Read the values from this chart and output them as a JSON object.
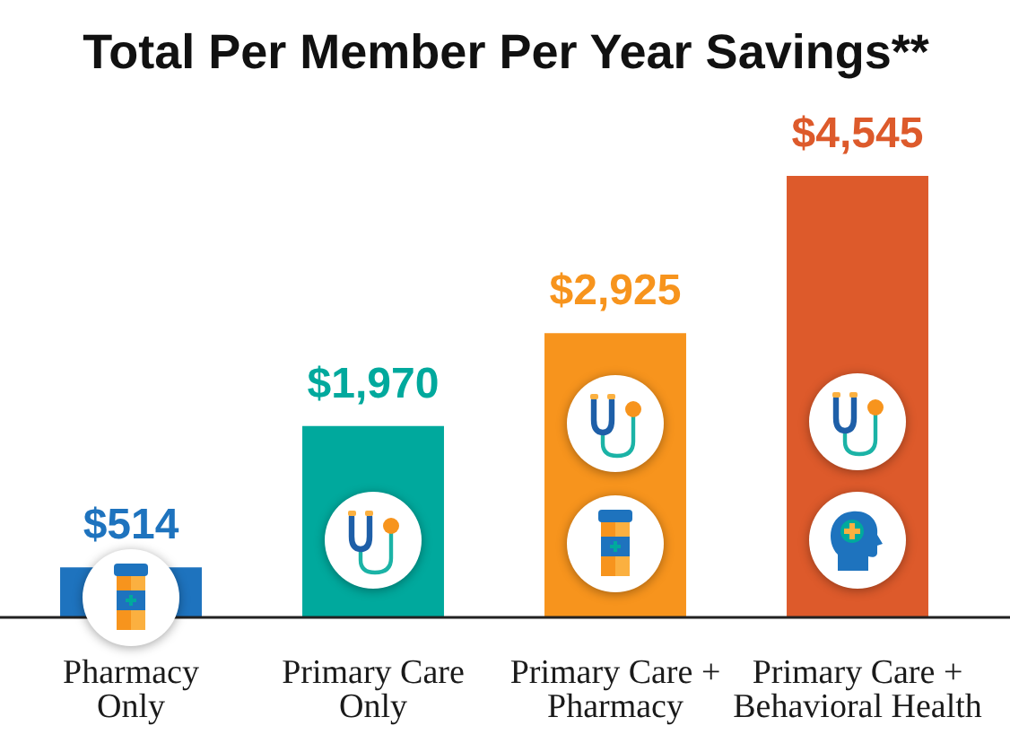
{
  "chart_data": {
    "type": "bar",
    "title": "Total Per Member Per Year Savings**",
    "categories": [
      "Pharmacy\nOnly",
      "Primary Care\nOnly",
      "Primary Care +\nPharmacy",
      "Primary Care +\nBehavioral Health"
    ],
    "values": [
      514,
      1970,
      2925,
      4545
    ],
    "colors": [
      "#1e73be",
      "#00a99d",
      "#f7941d",
      "#dd5a2b"
    ],
    "value_labels": [
      "$514",
      "$1,970",
      "$2,925",
      "$4,545"
    ]
  }
}
